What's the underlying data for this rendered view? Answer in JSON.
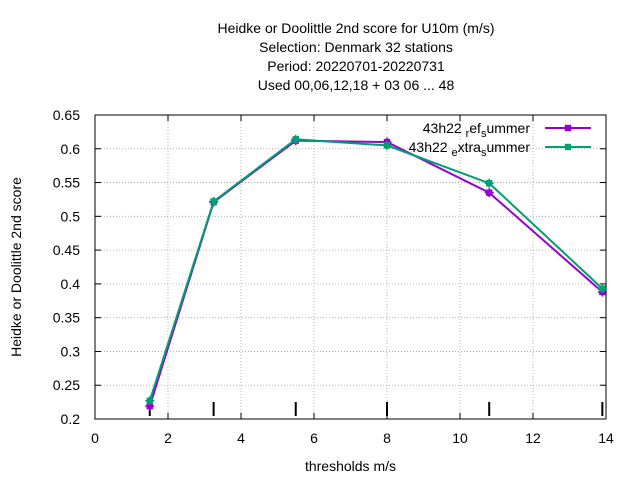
{
  "chart_data": {
    "type": "line",
    "title_lines": [
      "Heidke or Doolittle 2nd score  for U10m (m/s)",
      "Selection: Denmark     32 stations",
      "Period: 20220701-20220731",
      "Used  00,06,12,18  + 03 06 ... 48"
    ],
    "xlabel": "thresholds m/s",
    "ylabel": "Heidke or Doolittle 2nd score",
    "xlim": [
      0,
      14
    ],
    "ylim": [
      0.2,
      0.65
    ],
    "xticks": [
      0,
      2,
      4,
      6,
      8,
      10,
      12,
      14
    ],
    "yticks": [
      0.2,
      0.25,
      0.3,
      0.35,
      0.4,
      0.45,
      0.5,
      0.55,
      0.6,
      0.65
    ],
    "ytick_labels": [
      "0.2",
      "0.25",
      "0.3",
      "0.35",
      "0.4",
      "0.45",
      "0.5",
      "0.55",
      "0.6",
      "0.65"
    ],
    "grid": true,
    "legend_position": "top-right",
    "threshold_markers": [
      1.5,
      3.25,
      5.5,
      8.0,
      10.8,
      13.9
    ],
    "series": [
      {
        "name": "43h22_ref_summer",
        "legend_base": "43h22",
        "legend_parts": [
          {
            "text": "r",
            "shift": "sub"
          },
          {
            "text": "ef",
            "shift": "none"
          },
          {
            "text": "s",
            "shift": "sub"
          },
          {
            "text": "ummer",
            "shift": "none"
          }
        ],
        "color": "#9400d3",
        "x": [
          1.5,
          3.25,
          5.5,
          8.0,
          10.8,
          13.9
        ],
        "y": [
          0.219,
          0.521,
          0.612,
          0.61,
          0.535,
          0.388
        ]
      },
      {
        "name": "43h22_extra_summer",
        "legend_base": "43h22",
        "legend_parts": [
          {
            "text": "e",
            "shift": "sub"
          },
          {
            "text": "xtra",
            "shift": "none"
          },
          {
            "text": "s",
            "shift": "sub"
          },
          {
            "text": "ummer",
            "shift": "none"
          }
        ],
        "color": "#009e73",
        "x": [
          1.5,
          3.25,
          5.5,
          8.0,
          10.8,
          13.9
        ],
        "y": [
          0.227,
          0.522,
          0.614,
          0.605,
          0.549,
          0.393
        ]
      }
    ]
  }
}
